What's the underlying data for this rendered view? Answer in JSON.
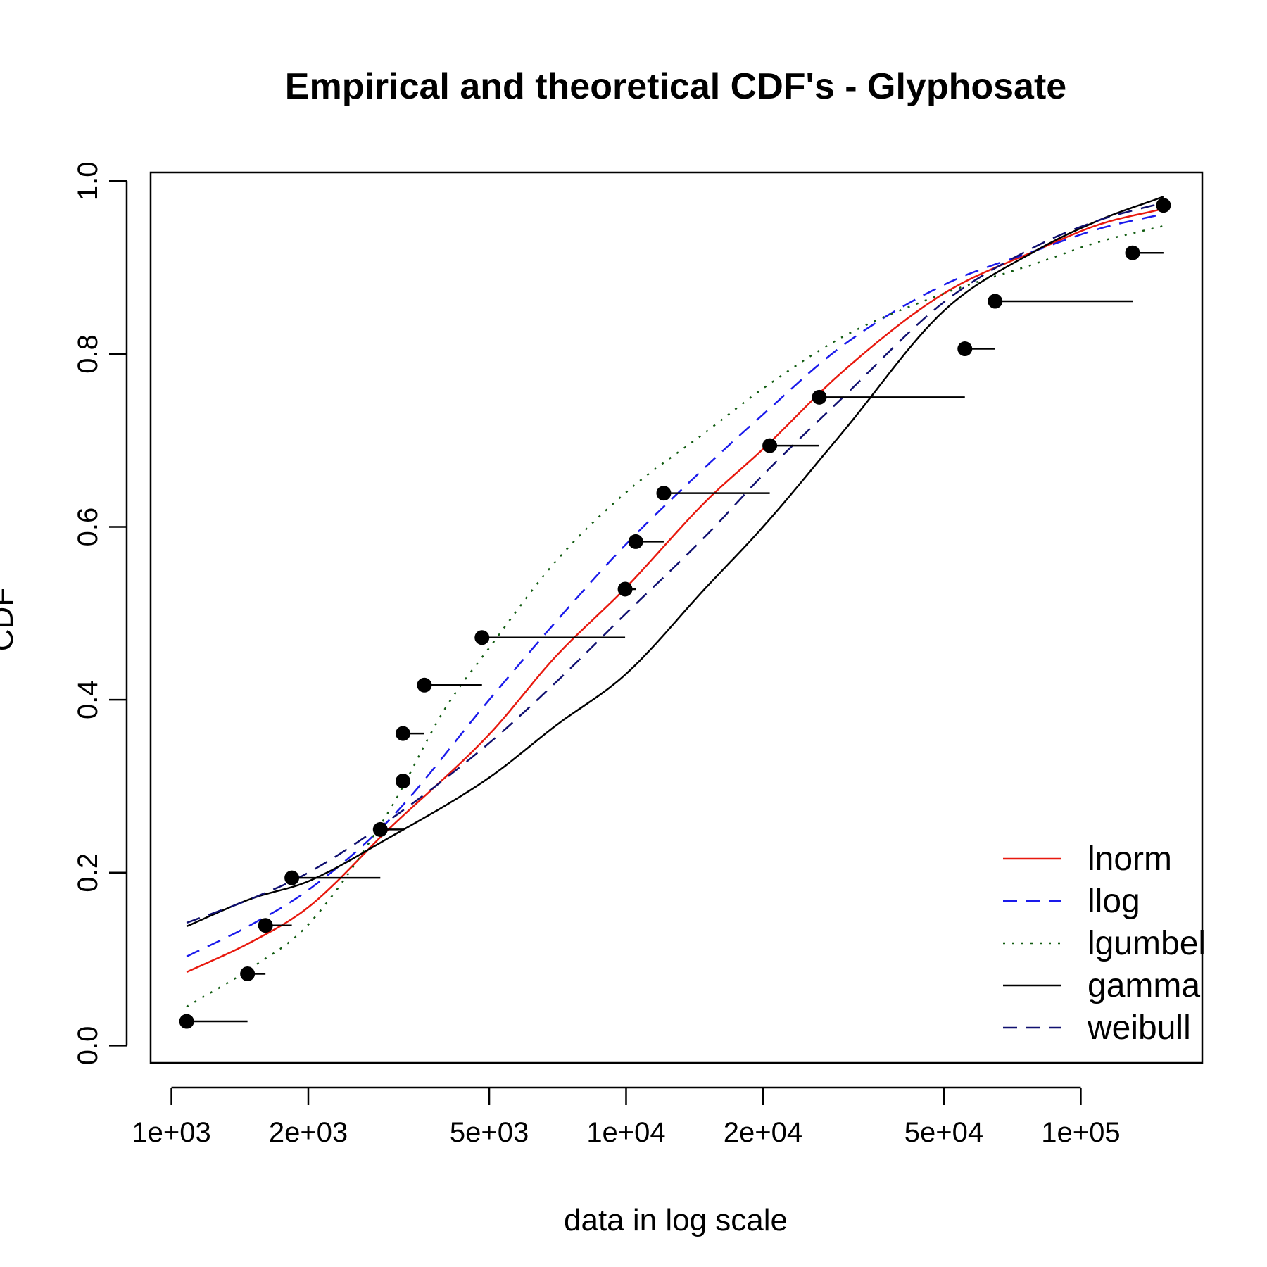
{
  "chart_data": {
    "type": "line",
    "title": "Empirical and theoretical CDF's - Glyphosate",
    "xlabel": "data in log scale",
    "ylabel": "CDF",
    "x_scale": "log10",
    "xlim": [
      900,
      185000
    ],
    "ylim": [
      -0.02,
      1.01
    ],
    "x_ticks": [
      {
        "value": 1000,
        "label": "1e+03"
      },
      {
        "value": 2000,
        "label": "2e+03"
      },
      {
        "value": 5000,
        "label": "5e+03"
      },
      {
        "value": 10000,
        "label": "1e+04"
      },
      {
        "value": 20000,
        "label": "2e+04"
      },
      {
        "value": 50000,
        "label": "5e+04"
      },
      {
        "value": 100000,
        "label": "1e+05"
      }
    ],
    "y_ticks": [
      {
        "value": 0.0,
        "label": "0.0"
      },
      {
        "value": 0.2,
        "label": "0.2"
      },
      {
        "value": 0.4,
        "label": "0.4"
      },
      {
        "value": 0.6,
        "label": "0.6"
      },
      {
        "value": 0.8,
        "label": "0.8"
      },
      {
        "value": 1.0,
        "label": "1.0"
      }
    ],
    "grid": false,
    "legend_position": "bottom-right",
    "empirical": {
      "points": [
        {
          "x": 1080,
          "y": 0.028
        },
        {
          "x": 1470,
          "y": 0.083
        },
        {
          "x": 1610,
          "y": 0.139
        },
        {
          "x": 1840,
          "y": 0.194
        },
        {
          "x": 2880,
          "y": 0.25
        },
        {
          "x": 3230,
          "y": 0.306
        },
        {
          "x": 3230,
          "y": 0.361
        },
        {
          "x": 3600,
          "y": 0.417
        },
        {
          "x": 4820,
          "y": 0.472
        },
        {
          "x": 9950,
          "y": 0.528
        },
        {
          "x": 10500,
          "y": 0.583
        },
        {
          "x": 12100,
          "y": 0.639
        },
        {
          "x": 20700,
          "y": 0.694
        },
        {
          "x": 26600,
          "y": 0.75
        },
        {
          "x": 55600,
          "y": 0.806
        },
        {
          "x": 64800,
          "y": 0.861
        },
        {
          "x": 130000,
          "y": 0.917
        },
        {
          "x": 152000,
          "y": 0.972
        }
      ]
    },
    "series": [
      {
        "name": "lnorm",
        "color": "#e8190e",
        "dash": "solid",
        "x": [
          1080,
          1500,
          2000,
          3000,
          5000,
          7000,
          10000,
          15000,
          20000,
          30000,
          50000,
          80000,
          110000,
          152000
        ],
        "y": [
          0.085,
          0.12,
          0.16,
          0.25,
          0.36,
          0.45,
          0.53,
          0.63,
          0.69,
          0.78,
          0.87,
          0.92,
          0.95,
          0.968
        ]
      },
      {
        "name": "llog",
        "color": "#1a1aeb",
        "dash": "dashed",
        "x": [
          1080,
          1500,
          2000,
          3000,
          5000,
          7000,
          10000,
          15000,
          20000,
          30000,
          50000,
          80000,
          110000,
          152000
        ],
        "y": [
          0.103,
          0.14,
          0.18,
          0.26,
          0.4,
          0.49,
          0.58,
          0.67,
          0.73,
          0.81,
          0.88,
          0.92,
          0.945,
          0.962
        ]
      },
      {
        "name": "lgumbel",
        "color": "#115c11",
        "dash": "dotted",
        "x": [
          1080,
          1500,
          2000,
          3000,
          4000,
          5000,
          7000,
          10000,
          15000,
          20000,
          30000,
          50000,
          80000,
          110000,
          152000
        ],
        "y": [
          0.045,
          0.09,
          0.14,
          0.27,
          0.39,
          0.46,
          0.56,
          0.64,
          0.71,
          0.76,
          0.82,
          0.87,
          0.905,
          0.93,
          0.948
        ]
      },
      {
        "name": "gamma",
        "color": "#000000",
        "dash": "solid",
        "x": [
          1080,
          1500,
          2000,
          3000,
          5000,
          7000,
          10000,
          15000,
          20000,
          30000,
          50000,
          80000,
          110000,
          152000
        ],
        "y": [
          0.138,
          0.17,
          0.19,
          0.24,
          0.31,
          0.37,
          0.43,
          0.53,
          0.6,
          0.71,
          0.85,
          0.92,
          0.955,
          0.982
        ]
      },
      {
        "name": "weibull",
        "color": "#101070",
        "dash": "dashed",
        "x": [
          1080,
          1500,
          2000,
          3000,
          5000,
          7000,
          10000,
          15000,
          20000,
          30000,
          50000,
          80000,
          110000,
          152000
        ],
        "y": [
          0.142,
          0.17,
          0.2,
          0.26,
          0.35,
          0.42,
          0.5,
          0.59,
          0.66,
          0.75,
          0.86,
          0.925,
          0.955,
          0.975
        ]
      }
    ]
  }
}
